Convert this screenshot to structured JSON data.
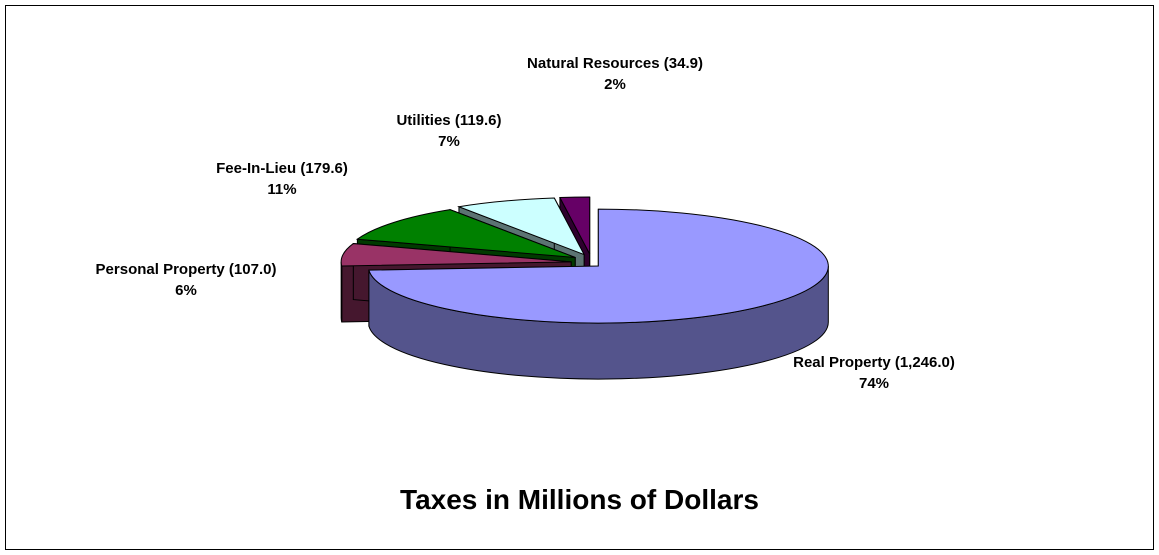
{
  "chart_data": {
    "type": "pie",
    "style": "3d-exploded",
    "title": "Taxes in Millions of Dollars",
    "slices": [
      {
        "name": "Real Property",
        "value": 1246.0,
        "value_text": "(1,246.0)",
        "percent": "74%",
        "color": "#9999ff"
      },
      {
        "name": "Personal Property",
        "value": 107.0,
        "value_text": "(107.0)",
        "percent": "6%",
        "color": "#993366"
      },
      {
        "name": "Fee-In-Lieu",
        "value": 179.6,
        "value_text": "(179.6)",
        "percent": "11%",
        "color": "#008000"
      },
      {
        "name": "Utilities",
        "value": 119.6,
        "value_text": "(119.6)",
        "percent": "7%",
        "color": "#ccffff"
      },
      {
        "name": "Natural Resources",
        "value": 34.9,
        "value_text": "(34.9)",
        "percent": "2%",
        "color": "#660066"
      }
    ],
    "legend": "none"
  },
  "labels": {
    "real_property": {
      "title": "Real Property (1,246.0)",
      "percent": "74%"
    },
    "personal_property": {
      "title": "Personal Property (107.0)",
      "percent": "6%"
    },
    "fee_in_lieu": {
      "title": "Fee-In-Lieu (179.6)",
      "percent": "11%"
    },
    "utilities": {
      "title": "Utilities (119.6)",
      "percent": "7%"
    },
    "natural_resources": {
      "title": "Natural Resources (34.9)",
      "percent": "2%"
    }
  }
}
